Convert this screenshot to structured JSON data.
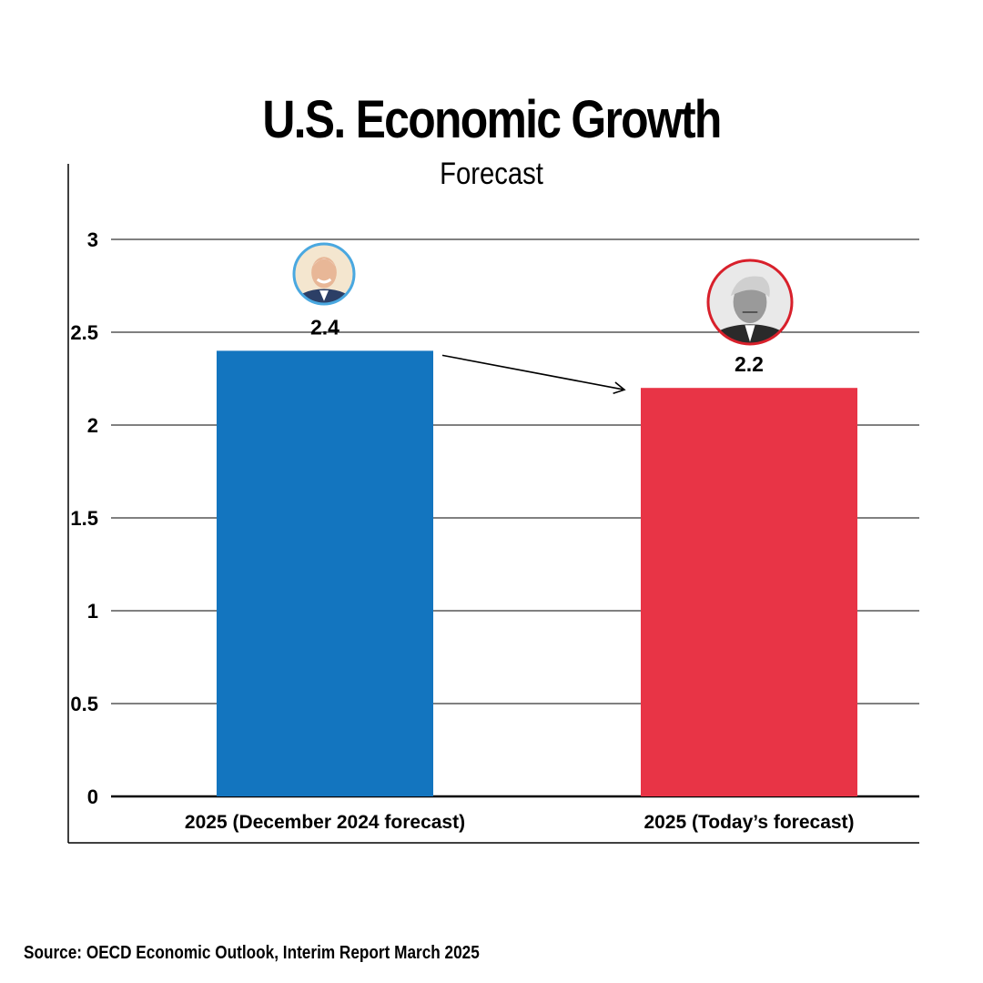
{
  "chart_data": {
    "type": "bar",
    "title": "U.S. Economic Growth",
    "subtitle": "Forecast",
    "categories": [
      "2025 (December 2024 forecast)",
      "2025 (Today’s forecast)"
    ],
    "values": [
      2.4,
      2.2
    ],
    "value_labels": [
      "2.4",
      "2.2"
    ],
    "colors": [
      "#1375bf",
      "#e83446"
    ],
    "portrait_ring_colors": [
      "#4aa8e0",
      "#d8202b"
    ],
    "portrait_icons": [
      "smiling-man-portrait-icon",
      "grayscale-man-portrait-icon"
    ],
    "ylim": [
      0,
      3
    ],
    "yticks": [
      "0",
      "0.5",
      "1",
      "1.5",
      "2",
      "2.5",
      "3"
    ],
    "grid": true,
    "annotation": "arrow from first bar to second bar"
  },
  "source": "Source: OECD Economic Outlook, Interim Report March 2025"
}
